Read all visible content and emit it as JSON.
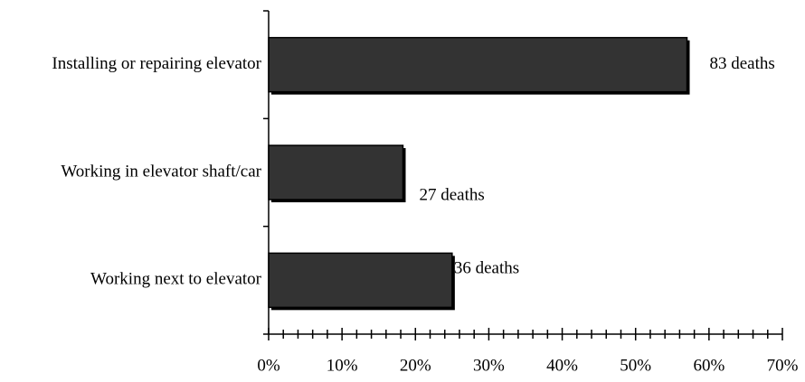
{
  "chart_data": {
    "type": "bar",
    "orientation": "horizontal",
    "categories": [
      "Installing or repairing elevator",
      "Working in elevator shaft/car",
      "Working next to elevator"
    ],
    "values": [
      57,
      18.3,
      25
    ],
    "annotations": [
      "83 deaths",
      "27 deaths",
      "36 deaths"
    ],
    "color": "#333333",
    "xlim": [
      0,
      70
    ],
    "xticks": [
      {
        "value": 0,
        "label": "0%"
      },
      {
        "value": 10,
        "label": "10%"
      },
      {
        "value": 20,
        "label": "20%"
      },
      {
        "value": 30,
        "label": "30%"
      },
      {
        "value": 40,
        "label": "40%"
      },
      {
        "value": 50,
        "label": "50%"
      },
      {
        "value": 60,
        "label": "60%"
      },
      {
        "value": 70,
        "label": "70%"
      }
    ]
  }
}
